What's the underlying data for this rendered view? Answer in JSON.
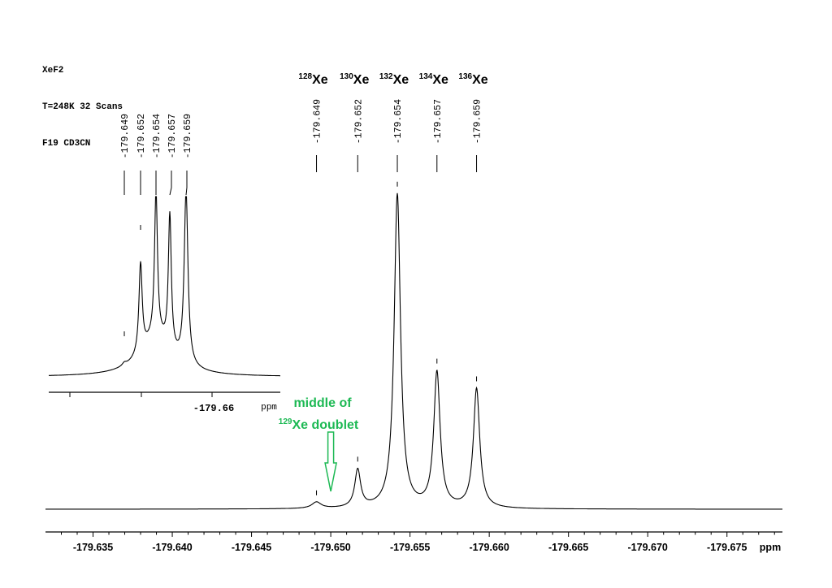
{
  "header": {
    "lines": [
      "XeF2",
      "T=248K 32 Scans",
      "F19 CD3CN"
    ]
  },
  "annotation": {
    "line1": "middle of",
    "mass": "129",
    "line2": "Xe doublet",
    "color": "#1db954",
    "x_ppm": -179.65
  },
  "chart_data": [
    {
      "type": "line",
      "title": "",
      "xlabel": "ppm",
      "ylabel": "",
      "x_reversed": true,
      "xlim": [
        -179.632,
        -179.6785
      ],
      "x_ticks": [
        -179.635,
        -179.64,
        -179.645,
        -179.65,
        -179.655,
        -179.66,
        -179.665,
        -179.67,
        -179.675
      ],
      "x_tick_labels": [
        "-179.635",
        "-179.640",
        "-179.645",
        "-179.650",
        "-179.655",
        "-179.660",
        "-179.665",
        "-179.670",
        "-179.675"
      ],
      "grid": false,
      "peaks": [
        {
          "isotope_mass": "128",
          "element": "Xe",
          "label": "-179.649",
          "ppm": -179.6491,
          "height": 0.02
        },
        {
          "isotope_mass": "130",
          "element": "Xe",
          "label": "-179.652",
          "ppm": -179.6517,
          "height": 0.12
        },
        {
          "isotope_mass": "132",
          "element": "Xe",
          "label": "-179.654",
          "ppm": -179.6542,
          "height": 1.0
        },
        {
          "isotope_mass": "134",
          "element": "Xe",
          "label": "-179.657",
          "ppm": -179.6567,
          "height": 0.43
        },
        {
          "isotope_mass": "136",
          "element": "Xe",
          "label": "-179.659",
          "ppm": -179.6592,
          "height": 0.38
        }
      ]
    },
    {
      "type": "line",
      "title": "",
      "xlabel": "ppm",
      "ylabel": "",
      "x_reversed": true,
      "x_ticks": [
        -179.66
      ],
      "x_tick_labels": [
        "-179.66"
      ],
      "grid": false,
      "peak_labels": [
        "-179.649",
        "-179.652",
        "-179.654",
        "-179.657",
        "-179.659"
      ]
    }
  ]
}
